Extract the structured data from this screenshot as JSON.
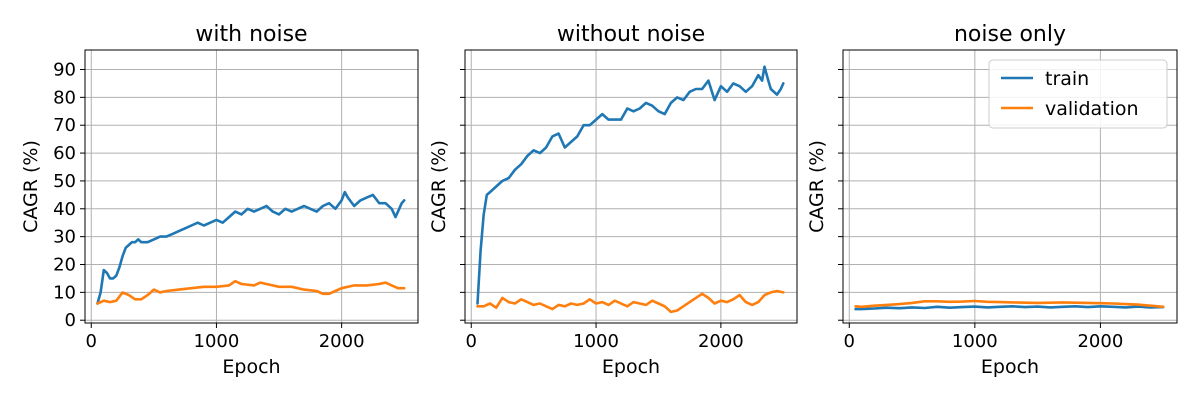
{
  "chart_data": [
    {
      "type": "line",
      "title": "with noise",
      "xlabel": "Epoch",
      "ylabel": "CAGR (%)",
      "xlim": [
        -50,
        2610
      ],
      "ylim": [
        -1,
        97
      ],
      "xticks": [
        0,
        1000,
        2000
      ],
      "yticks": [
        0,
        10,
        20,
        30,
        40,
        50,
        60,
        70,
        80,
        90
      ],
      "show_yticklabels": true,
      "grid": true,
      "legend": false,
      "series": [
        {
          "name": "train",
          "color": "#1f77b4",
          "x": [
            50,
            75,
            100,
            125,
            150,
            175,
            200,
            225,
            250,
            275,
            300,
            325,
            350,
            375,
            400,
            450,
            500,
            550,
            600,
            650,
            700,
            750,
            800,
            850,
            900,
            950,
            1000,
            1050,
            1100,
            1150,
            1200,
            1250,
            1300,
            1350,
            1400,
            1450,
            1500,
            1550,
            1600,
            1650,
            1700,
            1750,
            1800,
            1850,
            1900,
            1950,
            2000,
            2025,
            2050,
            2100,
            2150,
            2200,
            2250,
            2300,
            2350,
            2400,
            2430,
            2450,
            2480,
            2500
          ],
          "y": [
            6,
            10,
            18,
            17,
            15,
            15,
            16,
            19,
            23,
            26,
            27,
            28,
            28,
            29,
            28,
            28,
            29,
            30,
            30,
            31,
            32,
            33,
            34,
            35,
            34,
            35,
            36,
            35,
            37,
            39,
            38,
            40,
            39,
            40,
            41,
            39,
            38,
            40,
            39,
            40,
            41,
            40,
            39,
            41,
            42,
            40,
            43,
            46,
            44,
            41,
            43,
            44,
            45,
            42,
            42,
            40,
            37,
            39,
            42,
            43
          ]
        },
        {
          "name": "validation",
          "color": "#ff7f0e",
          "x": [
            50,
            100,
            150,
            200,
            250,
            300,
            350,
            400,
            450,
            500,
            550,
            600,
            700,
            800,
            900,
            1000,
            1100,
            1150,
            1200,
            1300,
            1350,
            1400,
            1500,
            1600,
            1700,
            1800,
            1850,
            1900,
            1950,
            2000,
            2100,
            2200,
            2300,
            2350,
            2400,
            2450,
            2500
          ],
          "y": [
            6,
            7,
            6.5,
            7,
            10,
            9,
            7.5,
            7.5,
            9,
            11,
            10,
            10.5,
            11,
            11.5,
            12,
            12,
            12.5,
            14,
            13,
            12.5,
            13.5,
            13,
            12,
            12,
            11,
            10.5,
            9.5,
            9.5,
            10.5,
            11.5,
            12.5,
            12.5,
            13,
            13.5,
            12.5,
            11.5,
            11.5
          ]
        }
      ]
    },
    {
      "type": "line",
      "title": "without noise",
      "xlabel": "Epoch",
      "ylabel": "CAGR (%)",
      "xlim": [
        -50,
        2610
      ],
      "ylim": [
        -1,
        97
      ],
      "xticks": [
        0,
        1000,
        2000
      ],
      "yticks": [
        0,
        10,
        20,
        30,
        40,
        50,
        60,
        70,
        80,
        90
      ],
      "show_yticklabels": false,
      "grid": true,
      "legend": false,
      "series": [
        {
          "name": "train",
          "color": "#1f77b4",
          "x": [
            50,
            75,
            100,
            125,
            150,
            200,
            250,
            300,
            350,
            400,
            450,
            500,
            550,
            600,
            650,
            700,
            750,
            800,
            850,
            900,
            950,
            1000,
            1050,
            1100,
            1150,
            1200,
            1250,
            1300,
            1350,
            1400,
            1450,
            1500,
            1550,
            1600,
            1650,
            1700,
            1750,
            1800,
            1850,
            1900,
            1950,
            2000,
            2050,
            2100,
            2150,
            2200,
            2250,
            2300,
            2330,
            2350,
            2380,
            2400,
            2450,
            2480,
            2500
          ],
          "y": [
            6,
            25,
            38,
            45,
            46,
            48,
            50,
            51,
            54,
            56,
            59,
            61,
            60,
            62,
            66,
            67,
            62,
            64,
            66,
            70,
            70,
            72,
            74,
            72,
            72,
            72,
            76,
            75,
            76,
            78,
            77,
            75,
            74,
            78,
            80,
            79,
            82,
            83,
            83,
            86,
            79,
            84,
            82,
            85,
            84,
            82,
            84,
            88,
            86,
            91,
            86,
            83,
            81,
            83,
            85
          ]
        },
        {
          "name": "validation",
          "color": "#ff7f0e",
          "x": [
            50,
            100,
            150,
            200,
            250,
            300,
            350,
            400,
            450,
            500,
            550,
            600,
            650,
            700,
            750,
            800,
            850,
            900,
            950,
            1000,
            1050,
            1100,
            1150,
            1200,
            1250,
            1300,
            1350,
            1400,
            1450,
            1500,
            1550,
            1600,
            1650,
            1700,
            1750,
            1800,
            1850,
            1900,
            1950,
            2000,
            2050,
            2100,
            2150,
            2200,
            2250,
            2300,
            2350,
            2400,
            2450,
            2500
          ],
          "y": [
            5,
            5,
            6,
            4.5,
            8,
            6.5,
            6,
            7.5,
            6.5,
            5.5,
            6,
            5,
            4,
            5.5,
            5,
            6,
            5.5,
            6,
            7.5,
            6,
            6.5,
            5.5,
            7,
            6,
            5,
            6.5,
            6,
            5.5,
            7,
            6,
            5,
            3,
            3.5,
            5,
            6.5,
            8,
            9.5,
            8,
            6,
            7,
            6.5,
            7.5,
            9,
            6.5,
            5.5,
            6.5,
            9,
            10,
            10.5,
            10
          ]
        }
      ]
    },
    {
      "type": "line",
      "title": "noise only",
      "xlabel": "Epoch",
      "ylabel": "CAGR (%)",
      "xlim": [
        -50,
        2610
      ],
      "ylim": [
        -1,
        97
      ],
      "xticks": [
        0,
        1000,
        2000
      ],
      "yticks": [
        0,
        10,
        20,
        30,
        40,
        50,
        60,
        70,
        80,
        90
      ],
      "show_yticklabels": false,
      "grid": true,
      "legend": true,
      "legend_position": "top-right",
      "series": [
        {
          "name": "train",
          "color": "#1f77b4",
          "x": [
            50,
            100,
            200,
            300,
            400,
            500,
            600,
            700,
            800,
            900,
            1000,
            1100,
            1200,
            1300,
            1400,
            1500,
            1600,
            1700,
            1800,
            1900,
            2000,
            2100,
            2200,
            2300,
            2400,
            2500
          ],
          "y": [
            4,
            4,
            4.2,
            4.5,
            4.3,
            4.6,
            4.4,
            4.8,
            4.5,
            4.7,
            4.9,
            4.6,
            4.8,
            5,
            4.7,
            4.9,
            4.6,
            4.8,
            5,
            4.7,
            5,
            4.8,
            4.6,
            4.9,
            4.6,
            4.7
          ]
        },
        {
          "name": "validation",
          "color": "#ff7f0e",
          "x": [
            50,
            100,
            200,
            300,
            400,
            500,
            600,
            700,
            800,
            900,
            1000,
            1100,
            1200,
            1300,
            1400,
            1500,
            1600,
            1700,
            1800,
            1900,
            2000,
            2100,
            2200,
            2300,
            2400,
            2500
          ],
          "y": [
            5,
            4.8,
            5.2,
            5.5,
            5.8,
            6.2,
            6.8,
            6.8,
            6.6,
            6.7,
            6.9,
            6.6,
            6.5,
            6.4,
            6.3,
            6.2,
            6.3,
            6.4,
            6.3,
            6.2,
            6.1,
            6.0,
            5.8,
            5.6,
            5.2,
            4.8
          ]
        }
      ]
    }
  ]
}
